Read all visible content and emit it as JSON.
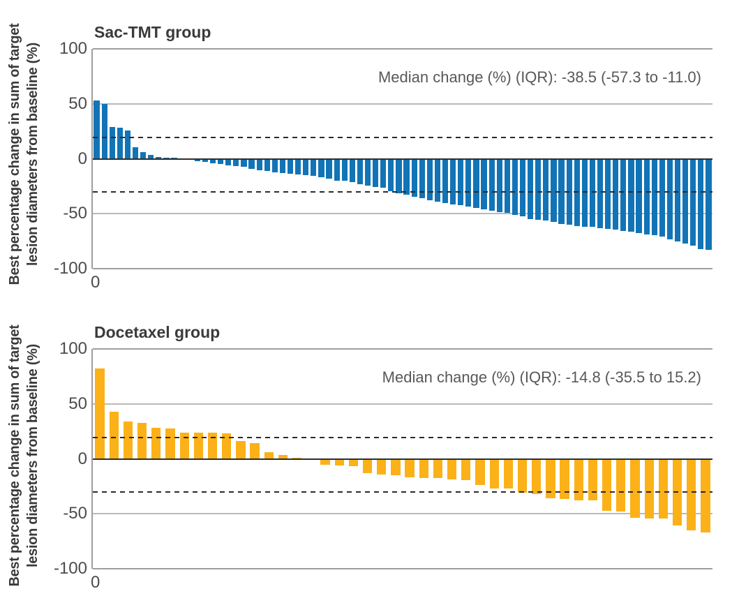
{
  "figure": {
    "y_axis_label_line1": "Best percentage change in sum of target",
    "y_axis_label_line2": "lesion diameters from baseline (%)",
    "x_tick_label": "0"
  },
  "chart_data": [
    {
      "type": "bar",
      "title": "Sac-TMT group",
      "annotation": "Median change (%) (IQR): -38.5 (-57.3 to -11.0)",
      "median_change_pct": -38.5,
      "iqr": [
        -57.3,
        -11.0
      ],
      "bar_color": "#1274B6",
      "ylabel": "Best percentage change in sum of target lesion diameters from baseline (%)",
      "ylim": [
        -100,
        100
      ],
      "yticks": [
        100,
        50,
        0,
        -50,
        -100
      ],
      "x_start_tick": "0",
      "reference_lines": [
        20,
        -30
      ],
      "grid": true,
      "legend": "none",
      "values": [
        53,
        50,
        29,
        28.5,
        26,
        10.5,
        6,
        3.5,
        1.5,
        0.7,
        0.3,
        -0.5,
        -1.2,
        -2,
        -3,
        -4,
        -5,
        -6,
        -6.8,
        -7.2,
        -8.9,
        -10.6,
        -11.3,
        -12.3,
        -12.8,
        -13.4,
        -14.5,
        -15,
        -15.5,
        -17,
        -18.1,
        -19.8,
        -20.2,
        -21.3,
        -23,
        -24.5,
        -25.5,
        -26.6,
        -29.4,
        -31.5,
        -33,
        -34.7,
        -36,
        -37.5,
        -38.8,
        -40,
        -41.3,
        -42.5,
        -43.8,
        -45,
        -46.2,
        -47.3,
        -48.5,
        -49.5,
        -51,
        -52.5,
        -54.9,
        -55.5,
        -56.3,
        -57.6,
        -59.1,
        -60.1,
        -61,
        -61.6,
        -62.2,
        -62.9,
        -63.5,
        -64.3,
        -65.4,
        -66.5,
        -67.5,
        -68.6,
        -69.6,
        -70.5,
        -73.4,
        -75.5,
        -77.2,
        -79.3,
        -82,
        -83
      ]
    },
    {
      "type": "bar",
      "title": "Docetaxel group",
      "annotation": "Median change (%) (IQR): -14.8 (-35.5 to 15.2)",
      "median_change_pct": -14.8,
      "iqr": [
        -35.5,
        15.2
      ],
      "bar_color": "#FBB117",
      "ylabel": "Best percentage change in sum of target lesion diameters from baseline (%)",
      "ylim": [
        -100,
        100
      ],
      "yticks": [
        100,
        50,
        0,
        -50,
        -100
      ],
      "x_start_tick": "0",
      "reference_lines": [
        20,
        -30
      ],
      "grid": true,
      "legend": "none",
      "values": [
        82,
        43,
        34,
        33,
        28,
        27.5,
        24,
        24,
        23.5,
        23,
        16,
        14,
        6,
        3.5,
        1,
        -1.2,
        -5.3,
        -6,
        -6.5,
        -13,
        -14.6,
        -15.2,
        -16.6,
        -17.7,
        -17.7,
        -18.5,
        -19.2,
        -23.6,
        -26.8,
        -27.2,
        -31,
        -31.8,
        -35.6,
        -36.7,
        -38,
        -38,
        -47.3,
        -47.7,
        -53.6,
        -54.2,
        -54.2,
        -60.6,
        -64.8,
        -66.9
      ]
    }
  ]
}
